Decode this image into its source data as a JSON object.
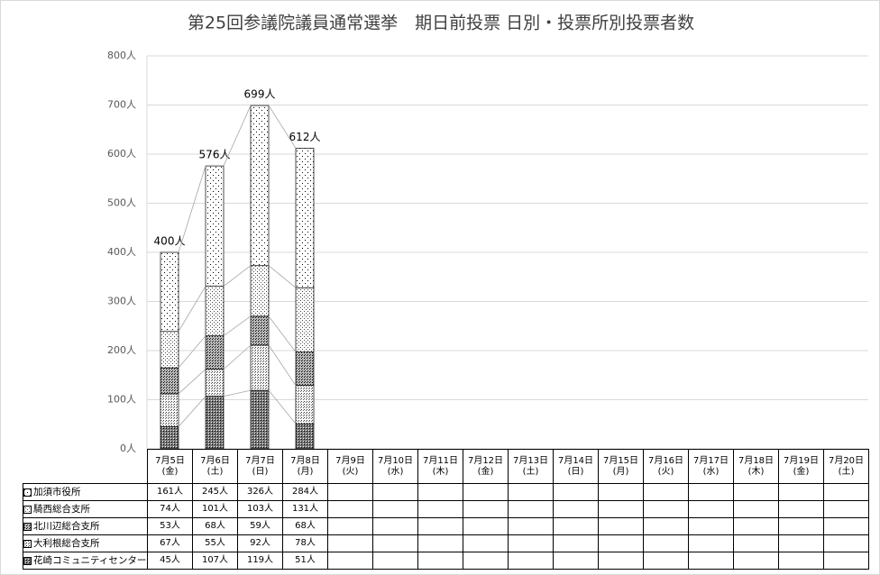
{
  "chart_data": {
    "type": "stacked-bar",
    "title": "第25回参議院議員通常選挙　期日前投票 日別・投票所別投票者数",
    "categories": [
      "7月5日(金)",
      "7月6日(土)",
      "7月7日(日)",
      "7月8日(月)",
      "7月9日(火)",
      "7月10日(水)",
      "7月11日(木)",
      "7月12日(金)",
      "7月13日(土)",
      "7月14日(日)",
      "7月15日(月)",
      "7月16日(火)",
      "7月17日(水)",
      "7月18日(木)",
      "7月19日(金)",
      "7月20日(土)"
    ],
    "series": [
      {
        "name": "加須市役所",
        "values": [
          161,
          245,
          326,
          284,
          null,
          null,
          null,
          null,
          null,
          null,
          null,
          null,
          null,
          null,
          null,
          null
        ],
        "value_labels": [
          "161人",
          "245人",
          "326人",
          "284人",
          null,
          null,
          null,
          null,
          null,
          null,
          null,
          null,
          null,
          null,
          null,
          null
        ]
      },
      {
        "name": "騎西総合支所",
        "values": [
          74,
          101,
          103,
          131,
          null,
          null,
          null,
          null,
          null,
          null,
          null,
          null,
          null,
          null,
          null,
          null
        ],
        "value_labels": [
          "74人",
          "101人",
          "103人",
          "131人",
          null,
          null,
          null,
          null,
          null,
          null,
          null,
          null,
          null,
          null,
          null,
          null
        ]
      },
      {
        "name": "北川辺総合支所",
        "values": [
          53,
          68,
          59,
          68,
          null,
          null,
          null,
          null,
          null,
          null,
          null,
          null,
          null,
          null,
          null,
          null
        ],
        "value_labels": [
          "53人",
          "68人",
          "59人",
          "68人",
          null,
          null,
          null,
          null,
          null,
          null,
          null,
          null,
          null,
          null,
          null,
          null
        ]
      },
      {
        "name": "大利根総合支所",
        "values": [
          67,
          55,
          92,
          78,
          null,
          null,
          null,
          null,
          null,
          null,
          null,
          null,
          null,
          null,
          null,
          null
        ],
        "value_labels": [
          "67人",
          "55人",
          "92人",
          "78人",
          null,
          null,
          null,
          null,
          null,
          null,
          null,
          null,
          null,
          null,
          null,
          null
        ]
      },
      {
        "name": "花崎コミュニティセンター",
        "values": [
          45,
          107,
          119,
          51,
          null,
          null,
          null,
          null,
          null,
          null,
          null,
          null,
          null,
          null,
          null,
          null
        ],
        "value_labels": [
          "45人",
          "107人",
          "119人",
          "51人",
          null,
          null,
          null,
          null,
          null,
          null,
          null,
          null,
          null,
          null,
          null,
          null
        ]
      }
    ],
    "totals": {
      "values": [
        400,
        576,
        699,
        612,
        null,
        null,
        null,
        null,
        null,
        null,
        null,
        null,
        null,
        null,
        null,
        null
      ],
      "value_labels": [
        "400人",
        "576人",
        "699人",
        "612人",
        null,
        null,
        null,
        null,
        null,
        null,
        null,
        null,
        null,
        null,
        null,
        null
      ]
    },
    "ylim": [
      0,
      800
    ],
    "yticks": [
      {
        "value": 0,
        "label": "0人"
      },
      {
        "value": 100,
        "label": "100人"
      },
      {
        "value": 200,
        "label": "200人"
      },
      {
        "value": 300,
        "label": "300人"
      },
      {
        "value": 400,
        "label": "400人"
      },
      {
        "value": 500,
        "label": "500人"
      },
      {
        "value": 600,
        "label": "600人"
      },
      {
        "value": 700,
        "label": "700人"
      },
      {
        "value": 800,
        "label": "800人"
      }
    ],
    "grid": true
  }
}
